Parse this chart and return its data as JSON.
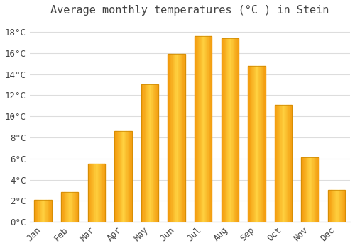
{
  "title": "Average monthly temperatures (°C ) in Stein",
  "months": [
    "Jan",
    "Feb",
    "Mar",
    "Apr",
    "May",
    "Jun",
    "Jul",
    "Aug",
    "Sep",
    "Oct",
    "Nov",
    "Dec"
  ],
  "values": [
    2.1,
    2.8,
    5.5,
    8.6,
    13.0,
    15.9,
    17.6,
    17.4,
    14.8,
    11.1,
    6.1,
    3.0
  ],
  "bar_color": "#FFA500",
  "bar_edge_color": "#CC8800",
  "background_color": "#FFFFFF",
  "plot_bg_color": "#FFFFFF",
  "outer_bg_color": "#FFFFFF",
  "grid_color": "#DDDDDD",
  "text_color": "#444444",
  "yticks": [
    0,
    2,
    4,
    6,
    8,
    10,
    12,
    14,
    16,
    18
  ],
  "ylim": [
    0,
    19.0
  ],
  "ylabel_suffix": "°C",
  "title_fontsize": 11,
  "tick_fontsize": 9,
  "font_family": "monospace"
}
